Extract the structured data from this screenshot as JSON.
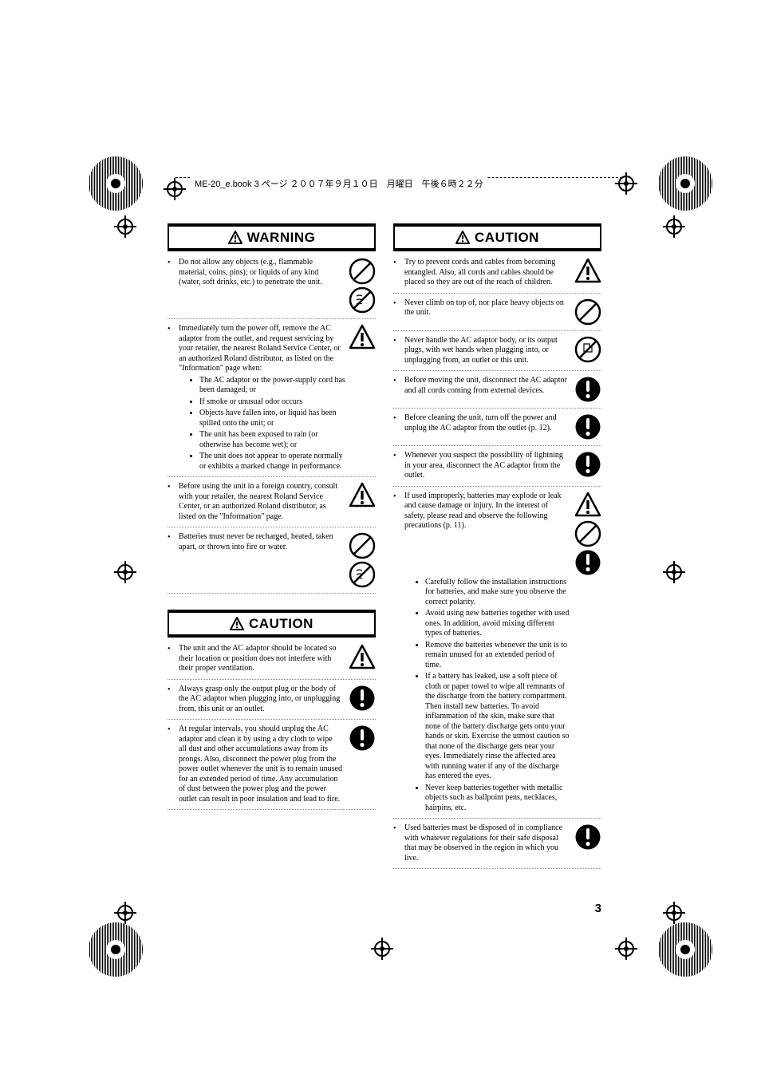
{
  "header": "ME-20_e.book 3 ページ ２００７年９月１０日　月曜日　午後６時２２分",
  "page_number": "3",
  "icon_colors": {
    "stroke": "#000000",
    "fill_black": "#000000",
    "fill_white": "#ffffff"
  },
  "warning": {
    "title": "WARNING",
    "items": [
      {
        "text": "Do not allow any objects (e.g., flammable material, coins, pins); or liquids of any kind (water, soft drinks, etc.) to penetrate the unit.",
        "icons": [
          "prohibit",
          "prohibit-wet"
        ]
      },
      {
        "text": "Immediately turn the power off, remove the AC adaptor from the outlet, and request servicing by your retailer, the nearest Roland Service Center, or an authorized Roland distributor, as listed on the \"Information\" page when:",
        "icons": [
          "tri-bang"
        ],
        "sub": [
          "The AC adaptor or the power-supply cord has been damaged; or",
          "If smoke or unusual odor occurs",
          "Objects have fallen into, or liquid has been spilled onto the unit; or",
          "The unit has been exposed to rain (or otherwise has become wet); or",
          "The unit does not appear to operate normally or exhibits a marked change in performance."
        ]
      },
      {
        "text": "Before using the unit in a foreign country, consult with your retailer, the nearest Roland Service Center, or an authorized Roland distributor, as listed on the \"Information\" page.",
        "icons": [
          "tri-bang"
        ]
      },
      {
        "text": "Batteries must never be recharged, heated, taken apart, or thrown into fire or water.",
        "icons": [
          "prohibit",
          "prohibit-wet"
        ]
      }
    ]
  },
  "caution_left": {
    "title": "CAUTION",
    "items": [
      {
        "text": "The unit and the AC adaptor should be located so their location or position does not interfere with their proper ventilation.",
        "icons": [
          "tri-bang"
        ]
      },
      {
        "text": "Always grasp only the output plug or the body of the AC adaptor when plugging into, or unplugging from, this unit or an outlet.",
        "icons": [
          "circle-bang"
        ]
      },
      {
        "text": "At regular intervals, you should unplug the AC adaptor and clean it by using a dry cloth to wipe all dust and other accumulations away from its prongs. Also, disconnect the power plug from the power outlet whenever the unit is to remain unused for an extended period of time. Any accumulation of dust between the power plug and the power outlet can result in poor insulation and lead to fire.",
        "icons": [
          "circle-bang"
        ]
      }
    ]
  },
  "caution_right": {
    "title": "CAUTION",
    "items": [
      {
        "text": "Try to prevent cords and cables from becoming entangled. Also, all cords and cables should be placed so they are out of the reach of children.",
        "icons": [
          "tri-bang"
        ]
      },
      {
        "text": "Never climb on top of, nor place heavy objects on the unit.",
        "icons": [
          "prohibit"
        ]
      },
      {
        "text": "Never handle the AC adaptor body, or its output plugs, with wet hands when plugging into, or unplugging from, an outlet or this unit.",
        "icons": [
          "prohibit-hand"
        ]
      },
      {
        "text": "Before moving the unit, disconnect the AC adaptor and all cords coming from external devices.",
        "icons": [
          "circle-bang"
        ]
      },
      {
        "text": "Before cleaning the unit, turn off the power and unplug the AC adaptor from the outlet (p. 12).",
        "icons": [
          "circle-bang"
        ]
      },
      {
        "text": "Whenever you suspect the possibility of lightning in your area, disconnect the AC adaptor from the outlet.",
        "icons": [
          "circle-bang"
        ]
      },
      {
        "text": "If used improperly, batteries may explode or leak and cause damage or injury. In the interest of safety, please read and observe the following precautions (p. 11).",
        "icons": [
          "tri-bang",
          "prohibit",
          "circle-bang"
        ],
        "sub": [
          "Carefully follow the installation instructions for batteries, and make sure you observe the correct polarity.",
          "Avoid using new batteries together with used ones. In addition, avoid mixing different types of batteries.",
          "Remove the batteries whenever the unit is to remain unused for an extended period of time.",
          "If a battery has leaked, use a soft piece of cloth or paper towel to wipe all remnants of the discharge from the battery compartment. Then install new batteries. To avoid inflammation of the skin, make sure that none of the battery discharge gets onto your hands or skin. Exercise the utmost caution so that none of the discharge gets near your eyes. Immediately rinse the affected area with running water if any of the discharge has entered the eyes.",
          "Never keep batteries together with metallic objects such as ballpoint pens, necklaces, hairpins, etc."
        ]
      },
      {
        "text": "Used batteries must be disposed of in compliance with whatever regulations for their safe disposal that may be observed in the region in which you live.",
        "icons": [
          "circle-bang"
        ]
      }
    ]
  }
}
